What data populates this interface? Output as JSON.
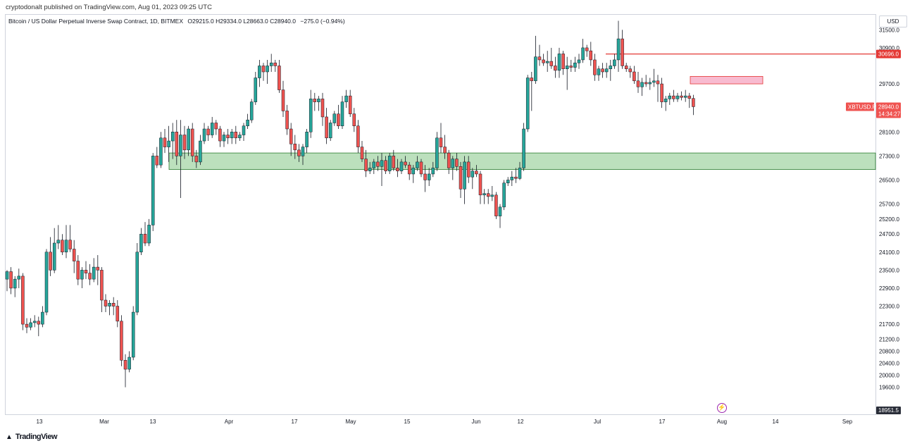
{
  "publish_line": "cryptodonalt published on TradingView.com, Aug 01, 2023 09:25 UTC",
  "legend": {
    "symbol": "Bitcoin / US Dollar Perpetual Inverse Swap Contract, 1D, BITMEX",
    "ohlc": "O29215.0  H29334.0  L28663.0  C28940.0",
    "change": "−275.0 (−0.94%)"
  },
  "currency": "USD",
  "footer_logo": "TradingView",
  "colors": {
    "up": "#26a69a",
    "down": "#ef5350",
    "demand_zone": "#a5d6a7",
    "supply_zone": "#f8bbd0",
    "resistance_line": "#e53935",
    "marker_purple": "#9c27b0"
  },
  "chart_data": {
    "type": "candlestick",
    "timeframe": "1D",
    "ylim": [
      18700,
      32000
    ],
    "y_ticks": [
      "31500.0",
      "30900.0",
      "29700.0",
      "28100.0",
      "27300.0",
      "26500.0",
      "25700.0",
      "25200.0",
      "24700.0",
      "24100.0",
      "23500.0",
      "22900.0",
      "22300.0",
      "21700.0",
      "21200.0",
      "20800.0",
      "20400.0",
      "20000.0",
      "19600.0"
    ],
    "x_ticks": [
      "13",
      "Mar",
      "13",
      "Apr",
      "17",
      "May",
      "15",
      "Jun",
      "12",
      "Jul",
      "17",
      "Aug",
      "14",
      "Sep"
    ],
    "price_labels": {
      "resistance": "30696.0",
      "last_price": "28940.0",
      "last_symbol": "XBTUSD.P",
      "countdown": "14:34:27",
      "bottom": "18951.5"
    },
    "annotations": {
      "resistance_line": 30696,
      "demand_zone": [
        26850,
        27400
      ],
      "supply_zone": [
        29700,
        29950
      ]
    },
    "candles": [
      {
        "o": 23200,
        "h": 23500,
        "l": 22800,
        "c": 23450
      },
      {
        "o": 23450,
        "h": 23600,
        "l": 22700,
        "c": 22900
      },
      {
        "o": 22900,
        "h": 23300,
        "l": 22600,
        "c": 23200
      },
      {
        "o": 23200,
        "h": 23550,
        "l": 22900,
        "c": 23300
      },
      {
        "o": 23300,
        "h": 23400,
        "l": 21500,
        "c": 21700
      },
      {
        "o": 21700,
        "h": 21900,
        "l": 21400,
        "c": 21600
      },
      {
        "o": 21600,
        "h": 21900,
        "l": 21500,
        "c": 21750
      },
      {
        "o": 21750,
        "h": 22000,
        "l": 21600,
        "c": 21800
      },
      {
        "o": 21800,
        "h": 21950,
        "l": 21300,
        "c": 21700
      },
      {
        "o": 21700,
        "h": 22300,
        "l": 21600,
        "c": 22100
      },
      {
        "o": 22100,
        "h": 24200,
        "l": 22000,
        "c": 24100
      },
      {
        "o": 24100,
        "h": 24600,
        "l": 23300,
        "c": 23500
      },
      {
        "o": 23500,
        "h": 24900,
        "l": 23400,
        "c": 24400
      },
      {
        "o": 24400,
        "h": 25000,
        "l": 24200,
        "c": 24500
      },
      {
        "o": 24500,
        "h": 24700,
        "l": 24000,
        "c": 24100
      },
      {
        "o": 24100,
        "h": 25000,
        "l": 23900,
        "c": 24500
      },
      {
        "o": 24500,
        "h": 25000,
        "l": 24100,
        "c": 24200
      },
      {
        "o": 24200,
        "h": 24500,
        "l": 23400,
        "c": 23800
      },
      {
        "o": 23800,
        "h": 24000,
        "l": 23000,
        "c": 23200
      },
      {
        "o": 23200,
        "h": 23600,
        "l": 22900,
        "c": 23500
      },
      {
        "o": 23500,
        "h": 23800,
        "l": 23200,
        "c": 23400
      },
      {
        "o": 23400,
        "h": 23700,
        "l": 23000,
        "c": 23200
      },
      {
        "o": 23200,
        "h": 23900,
        "l": 23100,
        "c": 23600
      },
      {
        "o": 23600,
        "h": 24000,
        "l": 23000,
        "c": 23500
      },
      {
        "o": 23500,
        "h": 23600,
        "l": 22100,
        "c": 22500
      },
      {
        "o": 22500,
        "h": 22700,
        "l": 22100,
        "c": 22300
      },
      {
        "o": 22300,
        "h": 22500,
        "l": 22000,
        "c": 22400
      },
      {
        "o": 22400,
        "h": 22600,
        "l": 22000,
        "c": 22300
      },
      {
        "o": 22300,
        "h": 22500,
        "l": 21600,
        "c": 21800
      },
      {
        "o": 21800,
        "h": 22000,
        "l": 20300,
        "c": 20500
      },
      {
        "o": 20500,
        "h": 20700,
        "l": 19600,
        "c": 20200
      },
      {
        "o": 20200,
        "h": 20800,
        "l": 20100,
        "c": 20600
      },
      {
        "o": 20600,
        "h": 22300,
        "l": 20500,
        "c": 22100
      },
      {
        "o": 22100,
        "h": 24400,
        "l": 22000,
        "c": 24100
      },
      {
        "o": 24100,
        "h": 24900,
        "l": 24000,
        "c": 24700
      },
      {
        "o": 24700,
        "h": 25100,
        "l": 24300,
        "c": 24400
      },
      {
        "o": 24400,
        "h": 25200,
        "l": 24300,
        "c": 25000
      },
      {
        "o": 25000,
        "h": 27400,
        "l": 24800,
        "c": 27300
      },
      {
        "o": 27300,
        "h": 27600,
        "l": 26900,
        "c": 27000
      },
      {
        "o": 27000,
        "h": 28100,
        "l": 26900,
        "c": 27900
      },
      {
        "o": 27900,
        "h": 28200,
        "l": 27400,
        "c": 27600
      },
      {
        "o": 27600,
        "h": 28300,
        "l": 27100,
        "c": 27800
      },
      {
        "o": 27800,
        "h": 28400,
        "l": 27200,
        "c": 28100
      },
      {
        "o": 28100,
        "h": 28500,
        "l": 27000,
        "c": 27300
      },
      {
        "o": 27300,
        "h": 28500,
        "l": 25900,
        "c": 28000
      },
      {
        "o": 28000,
        "h": 28300,
        "l": 27200,
        "c": 27500
      },
      {
        "o": 27500,
        "h": 28300,
        "l": 27300,
        "c": 28200
      },
      {
        "o": 28200,
        "h": 28400,
        "l": 27100,
        "c": 27300
      },
      {
        "o": 27300,
        "h": 27500,
        "l": 26900,
        "c": 27100
      },
      {
        "o": 27100,
        "h": 28000,
        "l": 27000,
        "c": 27800
      },
      {
        "o": 27800,
        "h": 28400,
        "l": 27700,
        "c": 28200
      },
      {
        "o": 28200,
        "h": 28300,
        "l": 27800,
        "c": 28000
      },
      {
        "o": 28000,
        "h": 28600,
        "l": 27900,
        "c": 28400
      },
      {
        "o": 28400,
        "h": 28500,
        "l": 28000,
        "c": 28200
      },
      {
        "o": 28200,
        "h": 28300,
        "l": 27600,
        "c": 27800
      },
      {
        "o": 27800,
        "h": 28100,
        "l": 27600,
        "c": 28000
      },
      {
        "o": 28000,
        "h": 28200,
        "l": 27700,
        "c": 27900
      },
      {
        "o": 27900,
        "h": 28200,
        "l": 27700,
        "c": 28100
      },
      {
        "o": 28100,
        "h": 28300,
        "l": 27700,
        "c": 27900
      },
      {
        "o": 27900,
        "h": 28100,
        "l": 27800,
        "c": 28000
      },
      {
        "o": 28000,
        "h": 28400,
        "l": 27800,
        "c": 28300
      },
      {
        "o": 28300,
        "h": 28700,
        "l": 28200,
        "c": 28500
      },
      {
        "o": 28500,
        "h": 29200,
        "l": 28400,
        "c": 29100
      },
      {
        "o": 29100,
        "h": 30100,
        "l": 29000,
        "c": 29900
      },
      {
        "o": 29900,
        "h": 30500,
        "l": 29600,
        "c": 30300
      },
      {
        "o": 30300,
        "h": 30400,
        "l": 29800,
        "c": 30100
      },
      {
        "o": 30100,
        "h": 30500,
        "l": 29700,
        "c": 30300
      },
      {
        "o": 30300,
        "h": 30700,
        "l": 30100,
        "c": 30400
      },
      {
        "o": 30400,
        "h": 30500,
        "l": 30100,
        "c": 30300
      },
      {
        "o": 30300,
        "h": 30500,
        "l": 29400,
        "c": 29500
      },
      {
        "o": 29500,
        "h": 29800,
        "l": 28600,
        "c": 28800
      },
      {
        "o": 28800,
        "h": 29000,
        "l": 28000,
        "c": 28200
      },
      {
        "o": 28200,
        "h": 28400,
        "l": 27300,
        "c": 27700
      },
      {
        "o": 27700,
        "h": 28000,
        "l": 27200,
        "c": 27500
      },
      {
        "o": 27500,
        "h": 27700,
        "l": 27100,
        "c": 27300
      },
      {
        "o": 27300,
        "h": 27700,
        "l": 27000,
        "c": 27600
      },
      {
        "o": 27600,
        "h": 28200,
        "l": 27400,
        "c": 28100
      },
      {
        "o": 28100,
        "h": 29500,
        "l": 27900,
        "c": 29200
      },
      {
        "o": 29200,
        "h": 29400,
        "l": 28800,
        "c": 29100
      },
      {
        "o": 29100,
        "h": 29300,
        "l": 28800,
        "c": 29200
      },
      {
        "o": 29200,
        "h": 29400,
        "l": 28300,
        "c": 28600
      },
      {
        "o": 28600,
        "h": 28900,
        "l": 27700,
        "c": 27900
      },
      {
        "o": 27900,
        "h": 28500,
        "l": 27800,
        "c": 28400
      },
      {
        "o": 28400,
        "h": 28800,
        "l": 28300,
        "c": 28700
      },
      {
        "o": 28700,
        "h": 29000,
        "l": 28200,
        "c": 28300
      },
      {
        "o": 28300,
        "h": 29300,
        "l": 28200,
        "c": 29100
      },
      {
        "o": 29100,
        "h": 29500,
        "l": 28900,
        "c": 29300
      },
      {
        "o": 29300,
        "h": 29500,
        "l": 28600,
        "c": 28700
      },
      {
        "o": 28700,
        "h": 28900,
        "l": 28100,
        "c": 28300
      },
      {
        "o": 28300,
        "h": 28500,
        "l": 27400,
        "c": 27600
      },
      {
        "o": 27600,
        "h": 27800,
        "l": 27100,
        "c": 27200
      },
      {
        "o": 27200,
        "h": 27500,
        "l": 26600,
        "c": 26800
      },
      {
        "o": 26800,
        "h": 27100,
        "l": 26700,
        "c": 26900
      },
      {
        "o": 26900,
        "h": 27200,
        "l": 26700,
        "c": 27100
      },
      {
        "o": 27100,
        "h": 27300,
        "l": 26800,
        "c": 26950
      },
      {
        "o": 26950,
        "h": 27400,
        "l": 26300,
        "c": 27150
      },
      {
        "o": 27150,
        "h": 27300,
        "l": 26700,
        "c": 26800
      },
      {
        "o": 26800,
        "h": 27400,
        "l": 26700,
        "c": 27300
      },
      {
        "o": 27300,
        "h": 27500,
        "l": 26800,
        "c": 26900
      },
      {
        "o": 26900,
        "h": 27200,
        "l": 26600,
        "c": 26800
      },
      {
        "o": 26800,
        "h": 27200,
        "l": 26700,
        "c": 27100
      },
      {
        "o": 27100,
        "h": 27300,
        "l": 26900,
        "c": 27000
      },
      {
        "o": 27000,
        "h": 27100,
        "l": 26500,
        "c": 26700
      },
      {
        "o": 26700,
        "h": 27000,
        "l": 26400,
        "c": 26900
      },
      {
        "o": 26900,
        "h": 27300,
        "l": 26800,
        "c": 27100
      },
      {
        "o": 27100,
        "h": 27200,
        "l": 26600,
        "c": 26700
      },
      {
        "o": 26700,
        "h": 27000,
        "l": 26100,
        "c": 26500
      },
      {
        "o": 26500,
        "h": 26900,
        "l": 26300,
        "c": 26700
      },
      {
        "o": 26700,
        "h": 27100,
        "l": 26600,
        "c": 26900
      },
      {
        "o": 26900,
        "h": 28100,
        "l": 26800,
        "c": 27900
      },
      {
        "o": 27900,
        "h": 28400,
        "l": 27400,
        "c": 27600
      },
      {
        "o": 27600,
        "h": 28000,
        "l": 27200,
        "c": 27400
      },
      {
        "o": 27400,
        "h": 27500,
        "l": 26700,
        "c": 26900
      },
      {
        "o": 26900,
        "h": 27300,
        "l": 26500,
        "c": 27200
      },
      {
        "o": 27200,
        "h": 27400,
        "l": 26800,
        "c": 26950
      },
      {
        "o": 26950,
        "h": 27100,
        "l": 25900,
        "c": 26200
      },
      {
        "o": 26200,
        "h": 27300,
        "l": 25700,
        "c": 27100
      },
      {
        "o": 27100,
        "h": 27300,
        "l": 26400,
        "c": 26600
      },
      {
        "o": 26600,
        "h": 26900,
        "l": 26200,
        "c": 26800
      },
      {
        "o": 26800,
        "h": 27000,
        "l": 26600,
        "c": 26700
      },
      {
        "o": 26700,
        "h": 26800,
        "l": 25700,
        "c": 26000
      },
      {
        "o": 26000,
        "h": 26200,
        "l": 25700,
        "c": 26050
      },
      {
        "o": 26050,
        "h": 26200,
        "l": 25700,
        "c": 25950
      },
      {
        "o": 25950,
        "h": 26300,
        "l": 25800,
        "c": 26000
      },
      {
        "o": 26000,
        "h": 26100,
        "l": 25200,
        "c": 25300
      },
      {
        "o": 25300,
        "h": 25700,
        "l": 24900,
        "c": 25600
      },
      {
        "o": 25600,
        "h": 26500,
        "l": 25500,
        "c": 26400
      },
      {
        "o": 26400,
        "h": 26600,
        "l": 26300,
        "c": 26500
      },
      {
        "o": 26500,
        "h": 26800,
        "l": 26300,
        "c": 26600
      },
      {
        "o": 26600,
        "h": 26900,
        "l": 26400,
        "c": 26550
      },
      {
        "o": 26550,
        "h": 27100,
        "l": 26500,
        "c": 26900
      },
      {
        "o": 26900,
        "h": 28400,
        "l": 26800,
        "c": 28200
      },
      {
        "o": 28200,
        "h": 30000,
        "l": 28100,
        "c": 29900
      },
      {
        "o": 29900,
        "h": 30100,
        "l": 28800,
        "c": 29800
      },
      {
        "o": 29800,
        "h": 31300,
        "l": 29700,
        "c": 30600
      },
      {
        "o": 30600,
        "h": 31000,
        "l": 30300,
        "c": 30500
      },
      {
        "o": 30500,
        "h": 30700,
        "l": 30300,
        "c": 30400
      },
      {
        "o": 30400,
        "h": 30800,
        "l": 30100,
        "c": 30450
      },
      {
        "o": 30450,
        "h": 30900,
        "l": 30200,
        "c": 30300
      },
      {
        "o": 30300,
        "h": 30600,
        "l": 29900,
        "c": 30150
      },
      {
        "o": 30150,
        "h": 30900,
        "l": 29900,
        "c": 30700
      },
      {
        "o": 30700,
        "h": 30800,
        "l": 30000,
        "c": 30200
      },
      {
        "o": 30200,
        "h": 30600,
        "l": 29500,
        "c": 30300
      },
      {
        "o": 30300,
        "h": 30500,
        "l": 30100,
        "c": 30250
      },
      {
        "o": 30250,
        "h": 30600,
        "l": 30100,
        "c": 30400
      },
      {
        "o": 30400,
        "h": 30700,
        "l": 30200,
        "c": 30500
      },
      {
        "o": 30500,
        "h": 31200,
        "l": 30400,
        "c": 30900
      },
      {
        "o": 30900,
        "h": 31000,
        "l": 30600,
        "c": 30800
      },
      {
        "o": 30800,
        "h": 31100,
        "l": 30300,
        "c": 30500
      },
      {
        "o": 30500,
        "h": 30700,
        "l": 29800,
        "c": 30000
      },
      {
        "o": 30000,
        "h": 30300,
        "l": 29800,
        "c": 30200
      },
      {
        "o": 30200,
        "h": 30400,
        "l": 29900,
        "c": 30100
      },
      {
        "o": 30100,
        "h": 30400,
        "l": 29900,
        "c": 30200
      },
      {
        "o": 30200,
        "h": 30500,
        "l": 29800,
        "c": 30300
      },
      {
        "o": 30300,
        "h": 30700,
        "l": 30200,
        "c": 30500
      },
      {
        "o": 30500,
        "h": 31800,
        "l": 30100,
        "c": 31200
      },
      {
        "o": 31200,
        "h": 31500,
        "l": 30200,
        "c": 30300
      },
      {
        "o": 30300,
        "h": 30400,
        "l": 30100,
        "c": 30200
      },
      {
        "o": 30200,
        "h": 30300,
        "l": 29900,
        "c": 30100
      },
      {
        "o": 30100,
        "h": 30300,
        "l": 29700,
        "c": 29800
      },
      {
        "o": 29800,
        "h": 30100,
        "l": 29400,
        "c": 29600
      },
      {
        "o": 29600,
        "h": 29900,
        "l": 29300,
        "c": 29750
      },
      {
        "o": 29750,
        "h": 30000,
        "l": 29600,
        "c": 29700
      },
      {
        "o": 29700,
        "h": 29900,
        "l": 29500,
        "c": 29750
      },
      {
        "o": 29750,
        "h": 30200,
        "l": 29600,
        "c": 29800
      },
      {
        "o": 29800,
        "h": 30000,
        "l": 29100,
        "c": 29700
      },
      {
        "o": 29700,
        "h": 29900,
        "l": 28900,
        "c": 29100
      },
      {
        "o": 29100,
        "h": 29300,
        "l": 28800,
        "c": 29200
      },
      {
        "o": 29200,
        "h": 29400,
        "l": 29000,
        "c": 29300
      },
      {
        "o": 29300,
        "h": 29500,
        "l": 29100,
        "c": 29200
      },
      {
        "o": 29200,
        "h": 29400,
        "l": 29100,
        "c": 29300
      },
      {
        "o": 29300,
        "h": 29450,
        "l": 29150,
        "c": 29250
      },
      {
        "o": 29250,
        "h": 29500,
        "l": 29100,
        "c": 29300
      },
      {
        "o": 29300,
        "h": 29400,
        "l": 28900,
        "c": 29215
      },
      {
        "o": 29215,
        "h": 29334,
        "l": 28663,
        "c": 28940
      }
    ]
  }
}
